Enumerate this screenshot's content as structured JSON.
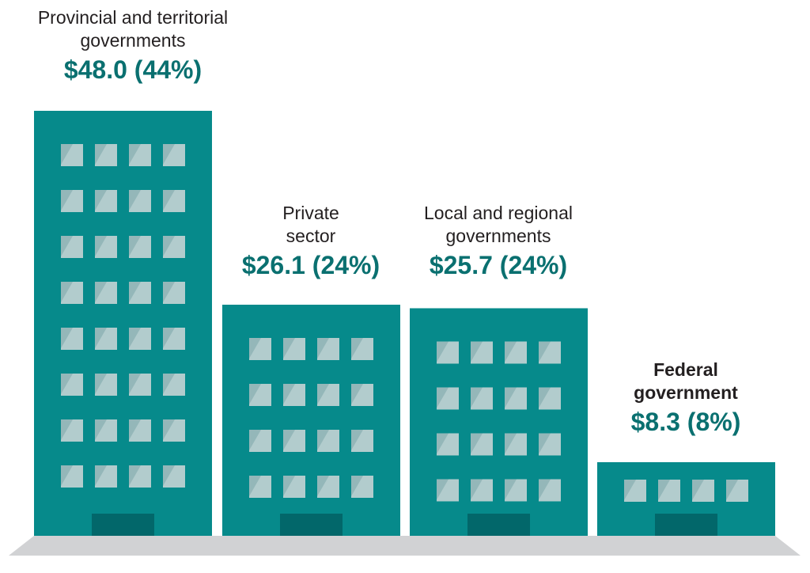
{
  "chart_data": {
    "type": "bar",
    "style": "building pictogram",
    "categories": [
      "Provincial and territorial governments",
      "Private sector",
      "Local and regional governments",
      "Federal government"
    ],
    "values": [
      48.0,
      26.1,
      25.7,
      8.3
    ],
    "percents": [
      44,
      24,
      24,
      8
    ],
    "value_labels": [
      "$48.0 (44%)",
      "$26.1 (24%)",
      "$25.7 (24%)",
      "$8.3 (8%)"
    ],
    "label_lines": [
      [
        "Provincial and territorial",
        "governments"
      ],
      [
        "Private",
        "sector"
      ],
      [
        "Local and regional",
        "governments"
      ],
      [
        "Federal",
        "government"
      ]
    ],
    "colors": {
      "building": "#068a8b",
      "door": "#02676a",
      "window": "#b2cccd",
      "window_shade": "#94b7b9",
      "ground": "#d1d2d4",
      "value_text": "#0a7070"
    }
  }
}
